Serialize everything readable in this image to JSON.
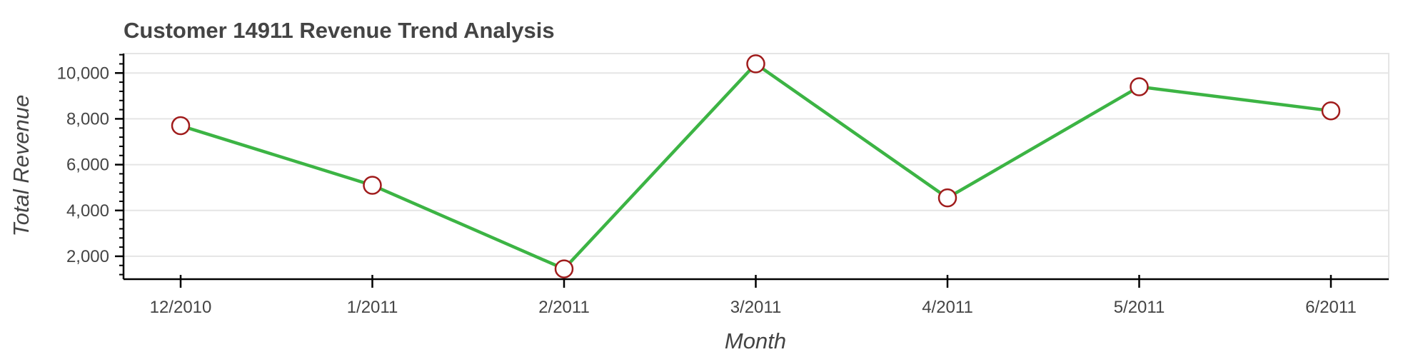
{
  "chart_data": {
    "type": "line",
    "title": "Customer 14911 Revenue Trend Analysis",
    "xlabel": "Month",
    "ylabel": "Total Revenue",
    "categories": [
      "12/2010",
      "1/2011",
      "2/2011",
      "3/2011",
      "4/2011",
      "5/2011",
      "6/2011"
    ],
    "series": [
      {
        "values": [
          7700,
          5100,
          1450,
          10400,
          4550,
          9400,
          8350
        ]
      }
    ],
    "yticks": [
      2000,
      4000,
      6000,
      8000,
      10000
    ],
    "ytick_labels": [
      "2,000",
      "4,000",
      "6,000",
      "8,000",
      "10,000"
    ],
    "ylim": [
      1000,
      10850
    ],
    "grid": true,
    "line_color": "#3cb444",
    "marker_edge_color": "#a01c1c",
    "marker_fill_color": "#ffffff"
  }
}
